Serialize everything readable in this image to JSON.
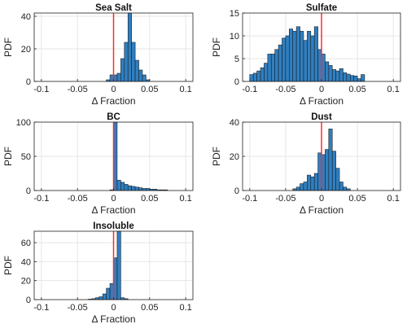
{
  "figure": {
    "layout": "3 rows x 2 columns of histograms, last row has one panel"
  },
  "chart_data": [
    {
      "type": "bar",
      "title": "Sea Salt",
      "xlabel": "Δ Fraction",
      "ylabel": "PDF",
      "xlim": [
        -0.11,
        0.11
      ],
      "ylim": [
        0,
        42
      ],
      "xticks": [
        -0.1,
        -0.05,
        0,
        0.05,
        0.1
      ],
      "xtick_labels": [
        "-0.1",
        "-0.05",
        "0",
        "0.05",
        "0.1"
      ],
      "yticks": [
        0,
        20,
        40
      ],
      "ytick_labels": [
        "0",
        "20",
        "40"
      ],
      "bin_width": 0.005,
      "bin_edges_start": -0.01,
      "values": [
        1,
        4,
        4,
        5,
        14,
        24,
        42,
        24,
        13,
        7,
        4,
        1
      ],
      "vline": 0,
      "grid": true
    },
    {
      "type": "bar",
      "title": "Sulfate",
      "xlabel": "Δ Fraction",
      "ylabel": "PDF",
      "xlim": [
        -0.11,
        0.11
      ],
      "ylim": [
        0,
        15
      ],
      "xticks": [
        -0.1,
        -0.05,
        0,
        0.05,
        0.1
      ],
      "xtick_labels": [
        "-0.1",
        "-0.05",
        "0",
        "0.05",
        "0.1"
      ],
      "yticks": [
        0,
        5,
        10,
        15
      ],
      "ytick_labels": [
        "0",
        "5",
        "10",
        "15"
      ],
      "bin_width": 0.005,
      "bin_edges_start": -0.1,
      "values": [
        1.5,
        1.8,
        2.3,
        3,
        4,
        6,
        6,
        7,
        8,
        9.5,
        10,
        11.5,
        11,
        12,
        11,
        9,
        11,
        10,
        12,
        7,
        6,
        4.3,
        3.5,
        2.6,
        2.3,
        2.8,
        1.9,
        1.6,
        1.3,
        1.2,
        0.6,
        1.5
      ],
      "vline": 0,
      "grid": true
    },
    {
      "type": "bar",
      "title": "BC",
      "xlabel": "Δ Fraction",
      "ylabel": "PDF",
      "xlim": [
        -0.11,
        0.11
      ],
      "ylim": [
        0,
        100
      ],
      "xticks": [
        -0.1,
        -0.05,
        0,
        0.05,
        0.1
      ],
      "xtick_labels": [
        "-0.1",
        "-0.05",
        "0",
        "0.05",
        "0.1"
      ],
      "yticks": [
        0,
        50,
        100
      ],
      "ytick_labels": [
        "0",
        "50",
        "100"
      ],
      "bin_width": 0.005,
      "bin_edges_start": -0.005,
      "values": [
        1,
        100,
        15,
        12,
        9,
        7,
        6,
        5,
        4,
        3,
        3,
        2,
        2,
        1,
        1,
        1
      ],
      "vline": 0,
      "grid": true
    },
    {
      "type": "bar",
      "title": "Dust",
      "xlabel": "Δ Fraction",
      "ylabel": "PDF",
      "xlim": [
        -0.11,
        0.11
      ],
      "ylim": [
        0,
        40
      ],
      "xticks": [
        -0.1,
        -0.05,
        0,
        0.05,
        0.1
      ],
      "xtick_labels": [
        "-0.1",
        "-0.05",
        "0",
        "0.05",
        "0.1"
      ],
      "yticks": [
        0,
        20,
        40
      ],
      "ytick_labels": [
        "0",
        "20",
        "40"
      ],
      "bin_width": 0.005,
      "bin_edges_start": -0.04,
      "values": [
        1,
        2,
        4,
        5,
        9,
        8,
        10,
        22,
        21,
        24,
        36,
        23,
        13,
        5,
        2,
        1
      ],
      "vline": 0,
      "grid": true
    },
    {
      "type": "bar",
      "title": "Insoluble",
      "xlabel": "Δ Fraction",
      "ylabel": "PDF",
      "xlim": [
        -0.11,
        0.11
      ],
      "ylim": [
        0,
        72
      ],
      "xticks": [
        -0.1,
        -0.05,
        0,
        0.05,
        0.1
      ],
      "xtick_labels": [
        "-0.1",
        "-0.05",
        "0",
        "0.05",
        "0.1"
      ],
      "yticks": [
        0,
        20,
        40,
        60
      ],
      "ytick_labels": [
        "0",
        "20",
        "40",
        "60"
      ],
      "bin_width": 0.005,
      "bin_edges_start": -0.035,
      "values": [
        0.5,
        1,
        2,
        3,
        6,
        12,
        17,
        44,
        72,
        2,
        1
      ],
      "vline": 0,
      "grid": true
    }
  ],
  "colors": {
    "bar_fill": "#2f7fc1",
    "bar_edge": "#1f1f1f",
    "zero_line": "#ff2a2a",
    "grid": "#e6e6e6",
    "axis": "#222222"
  }
}
